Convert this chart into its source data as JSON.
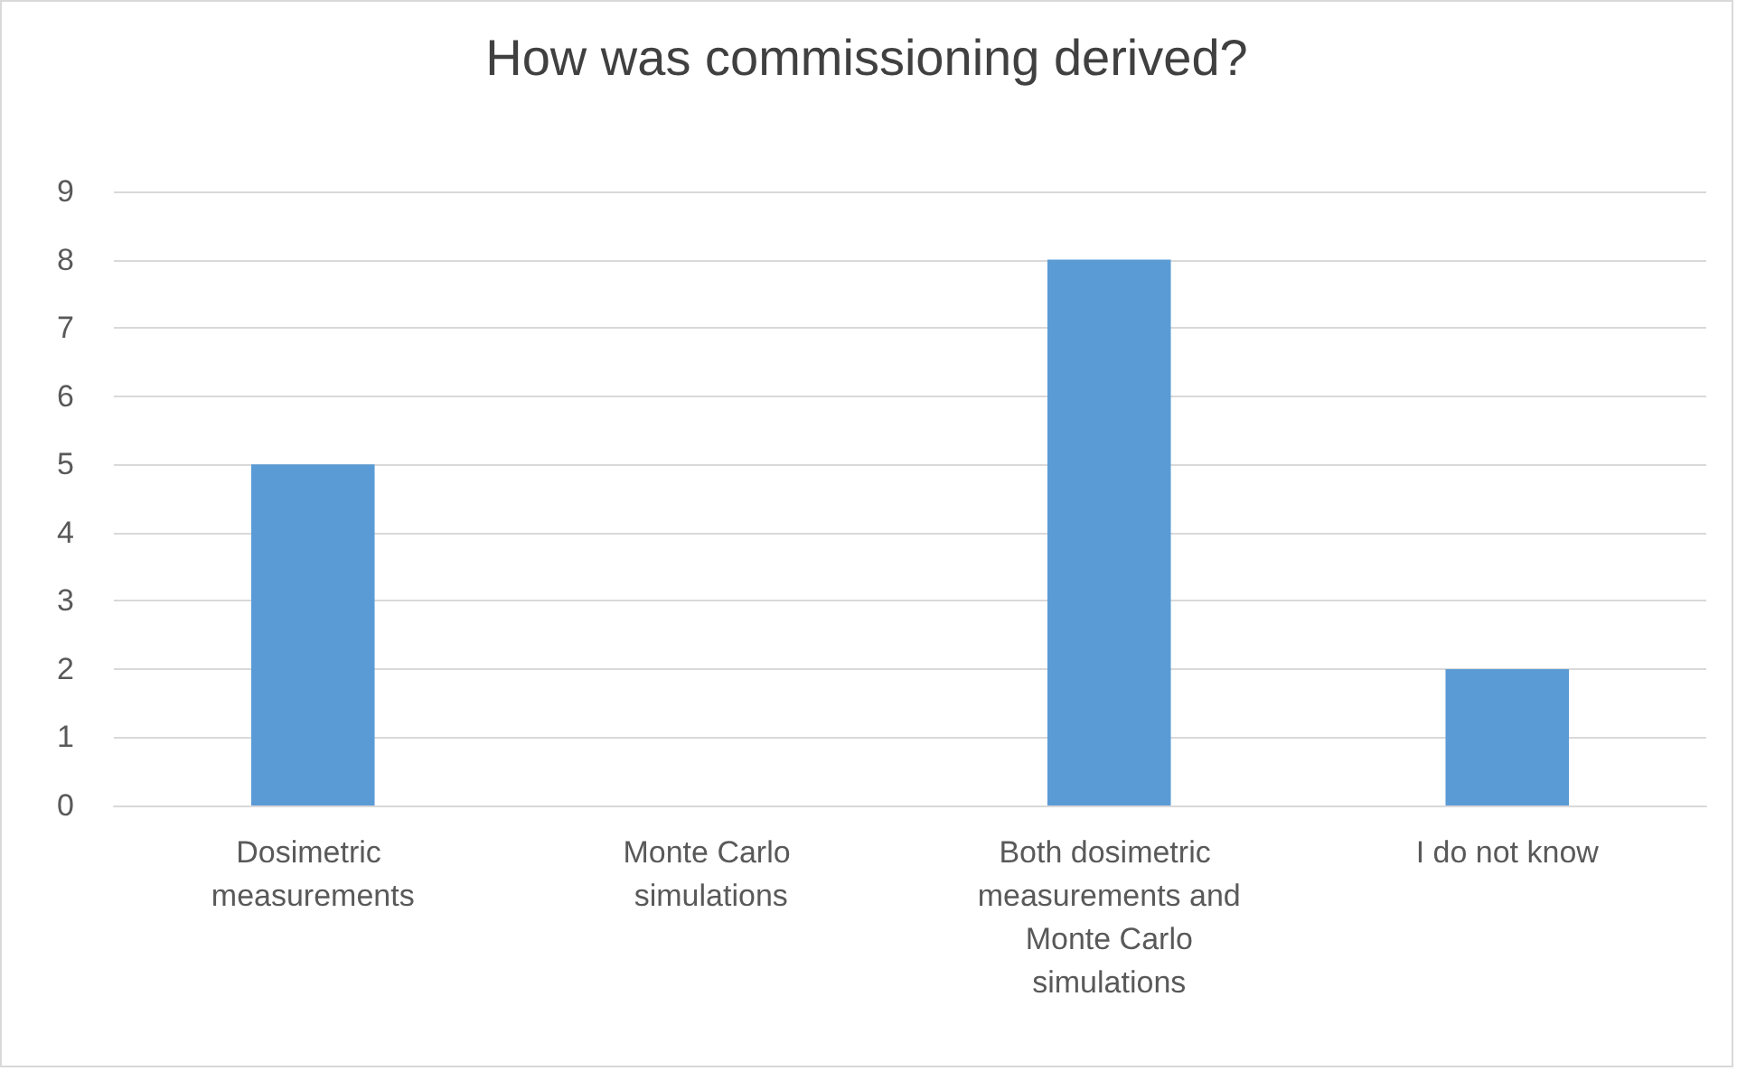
{
  "chart_data": {
    "type": "bar",
    "title": "How was commissioning derived?",
    "categories": [
      "Dosimetric measurements",
      "Monte Carlo simulations",
      "Both dosimetric measurements and Monte Carlo simulations",
      "I do not know"
    ],
    "values": [
      5,
      0,
      8,
      2
    ],
    "color": "#5b9bd5",
    "ylim": [
      0,
      9
    ],
    "yticks": [
      0,
      1,
      2,
      3,
      4,
      5,
      6,
      7,
      8,
      9
    ],
    "grid": "y"
  }
}
